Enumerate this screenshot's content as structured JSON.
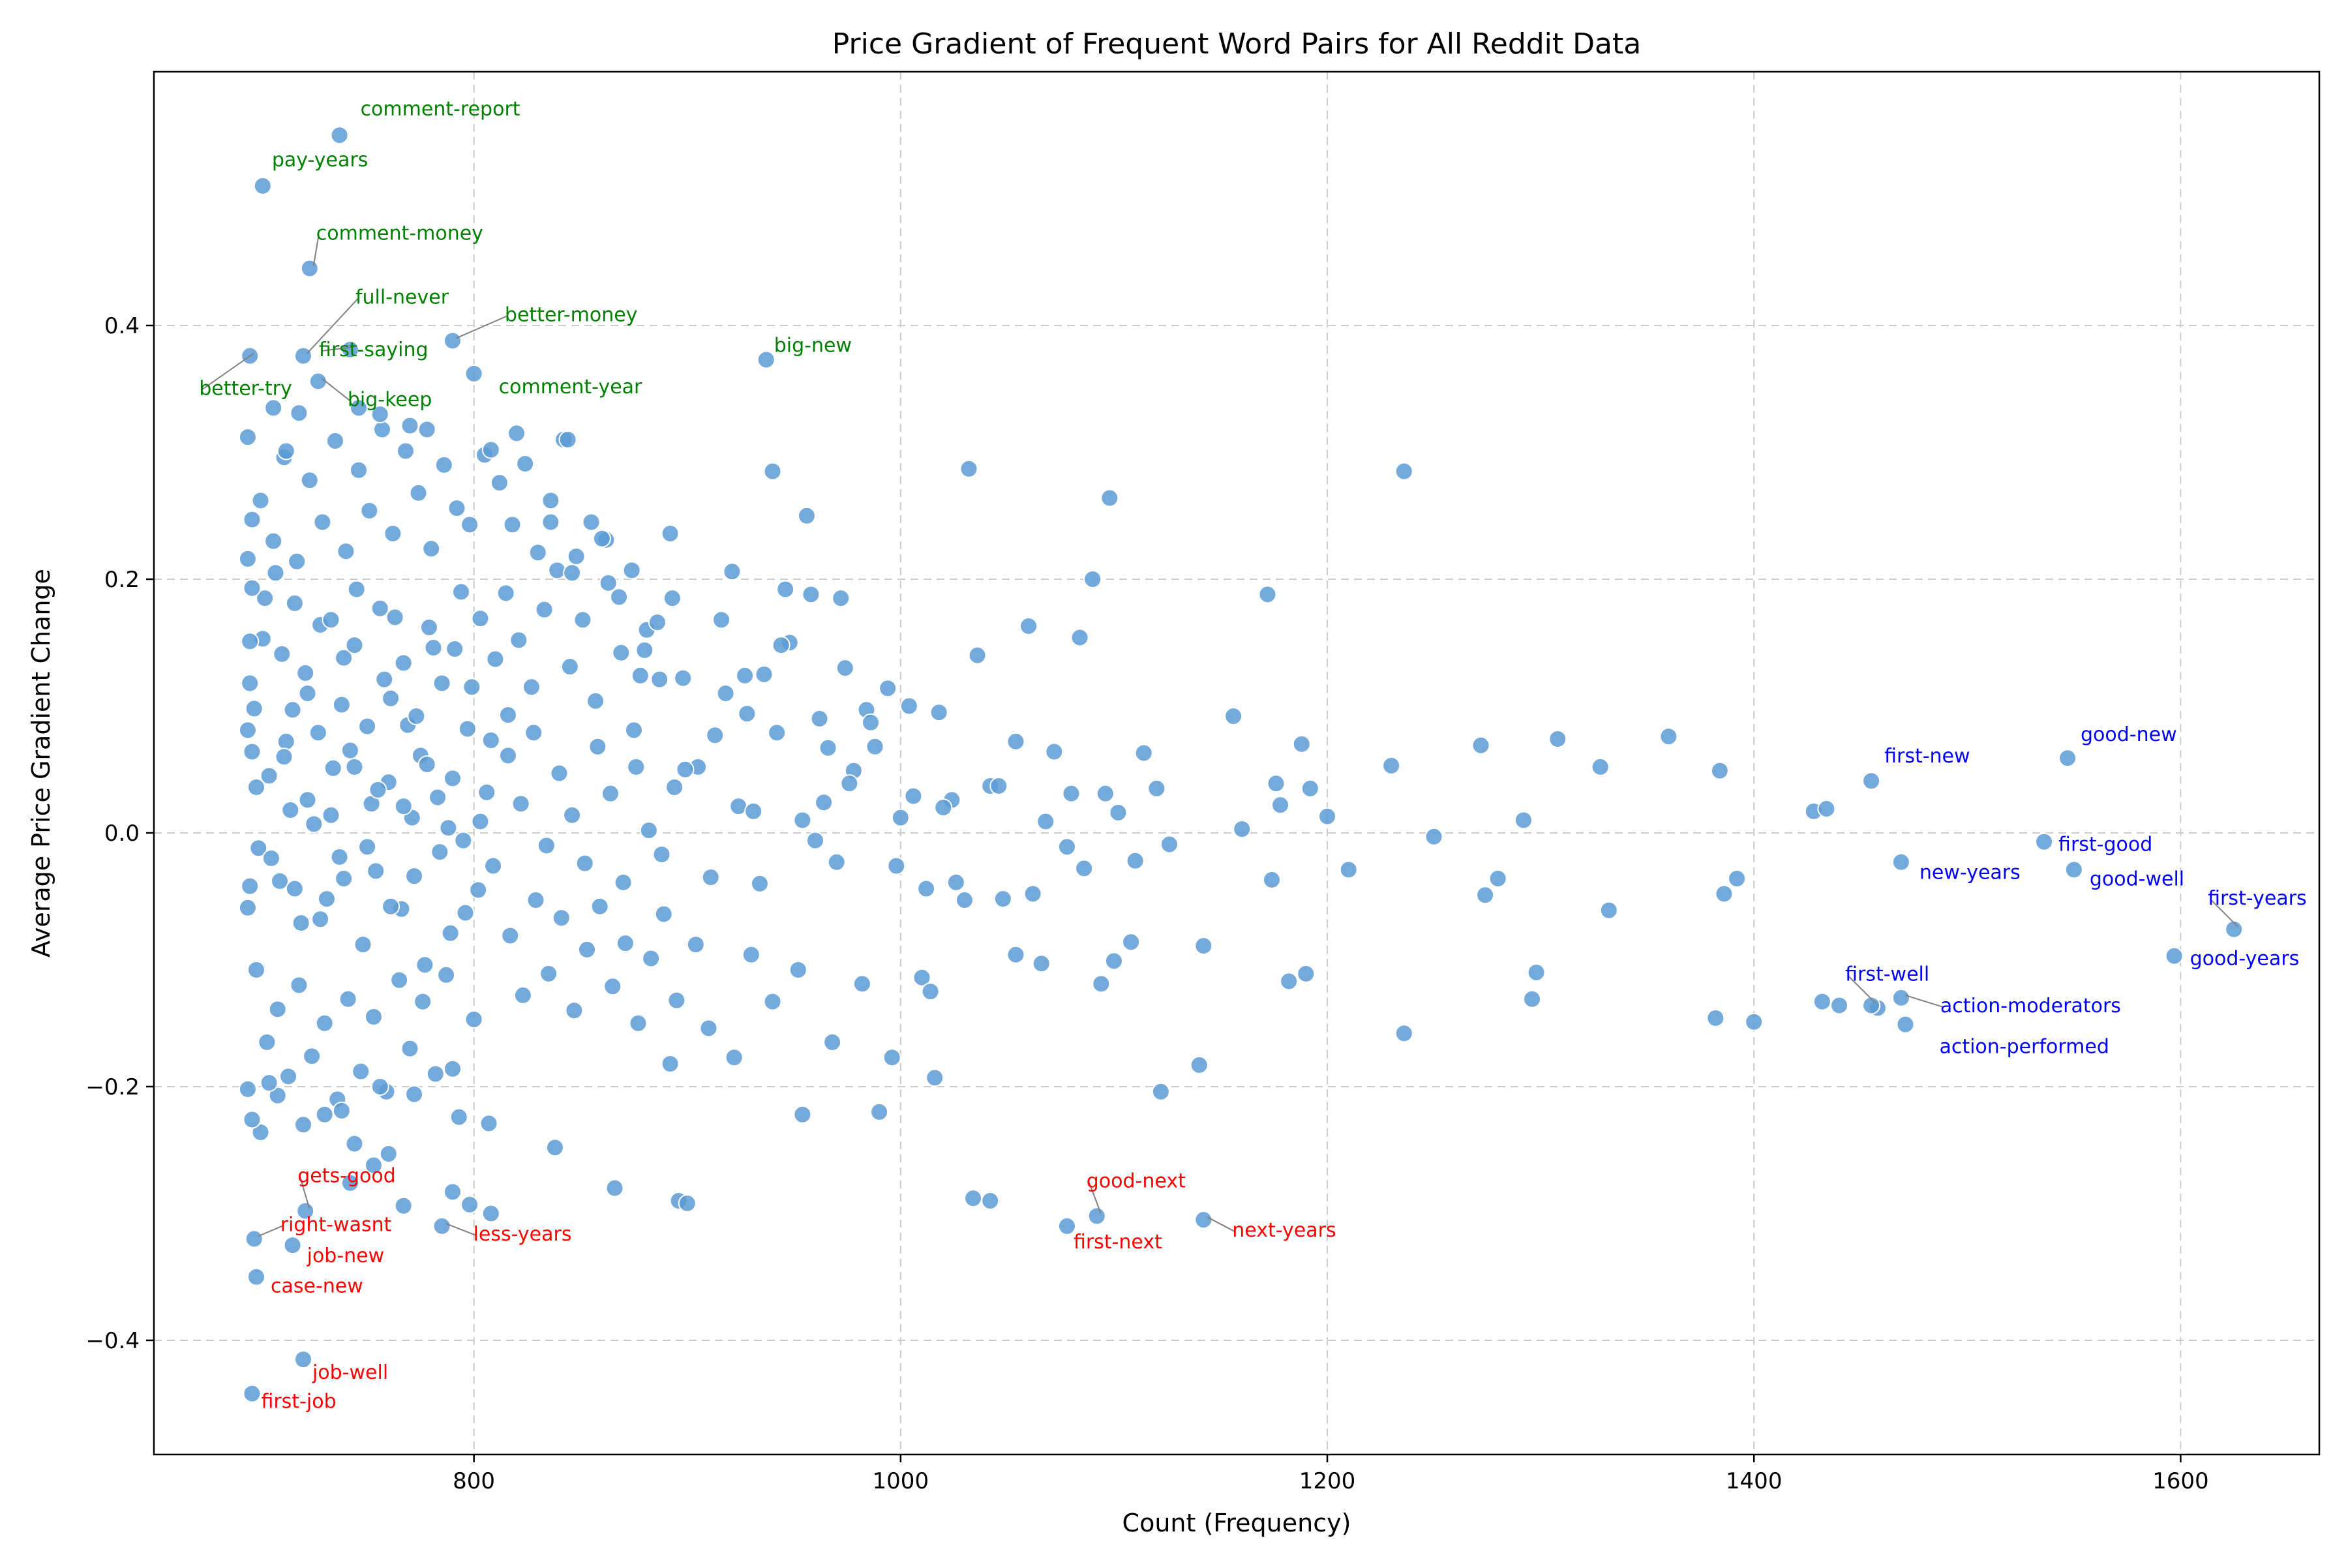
{
  "chart_data": {
    "type": "scatter",
    "title": "Price Gradient of Frequent Word Pairs for All Reddit Data",
    "xlabel": "Count (Frequency)",
    "ylabel": "Average Price Gradient Change",
    "xlim": [
      650,
      1665
    ],
    "ylim": [
      -0.49,
      0.6
    ],
    "xticks": [
      800,
      1000,
      1200,
      1400,
      1600
    ],
    "yticks": [
      -0.4,
      -0.2,
      0.0,
      0.2,
      0.4
    ],
    "xtick_labels": [
      "800",
      "1000",
      "1200",
      "1400",
      "1600"
    ],
    "ytick_labels": [
      "−0.4",
      "−0.2",
      "0.0",
      "0.2",
      "0.4"
    ],
    "grid": true,
    "point_color": "#5b9bd5",
    "annotation_colors": {
      "high": "#008000",
      "low": "#ff0000",
      "frequent": "#0000ff"
    },
    "annotated_points": [
      {
        "label": "comment-report",
        "x": 737,
        "y": 0.55,
        "group": "high"
      },
      {
        "label": "pay-years",
        "x": 701,
        "y": 0.51,
        "group": "high"
      },
      {
        "label": "comment-money",
        "x": 723,
        "y": 0.445,
        "group": "high"
      },
      {
        "label": "full-never",
        "x": 720,
        "y": 0.376,
        "group": "high"
      },
      {
        "label": "better-money",
        "x": 790,
        "y": 0.388,
        "group": "high"
      },
      {
        "label": "big-new",
        "x": 937,
        "y": 0.373,
        "group": "high"
      },
      {
        "label": "first-saying",
        "x": 742,
        "y": 0.381,
        "group": "high"
      },
      {
        "label": "comment-year",
        "x": 800,
        "y": 0.362,
        "group": "high"
      },
      {
        "label": "better-try",
        "x": 695,
        "y": 0.376,
        "group": "high"
      },
      {
        "label": "big-keep",
        "x": 727,
        "y": 0.356,
        "group": "high"
      },
      {
        "label": "first-new",
        "x": 1455,
        "y": 0.041,
        "group": "frequent"
      },
      {
        "label": "good-new",
        "x": 1547,
        "y": 0.059,
        "group": "frequent"
      },
      {
        "label": "first-good",
        "x": 1536,
        "y": -0.007,
        "group": "frequent"
      },
      {
        "label": "new-years",
        "x": 1469,
        "y": -0.023,
        "group": "frequent"
      },
      {
        "label": "good-well",
        "x": 1550,
        "y": -0.029,
        "group": "frequent"
      },
      {
        "label": "first-years",
        "x": 1625,
        "y": -0.076,
        "group": "frequent"
      },
      {
        "label": "good-years",
        "x": 1597,
        "y": -0.097,
        "group": "frequent"
      },
      {
        "label": "first-well",
        "x": 1455,
        "y": -0.136,
        "group": "frequent"
      },
      {
        "label": "action-moderators",
        "x": 1469,
        "y": -0.13,
        "group": "frequent"
      },
      {
        "label": "action-performed",
        "x": 1471,
        "y": -0.151,
        "group": "frequent"
      },
      {
        "label": "gets-good",
        "x": 721,
        "y": -0.298,
        "group": "low"
      },
      {
        "label": "right-wasnt",
        "x": 697,
        "y": -0.32,
        "group": "low"
      },
      {
        "label": "job-new",
        "x": 715,
        "y": -0.325,
        "group": "low"
      },
      {
        "label": "less-years",
        "x": 785,
        "y": -0.31,
        "group": "low"
      },
      {
        "label": "case-new",
        "x": 698,
        "y": -0.35,
        "group": "low"
      },
      {
        "label": "good-next",
        "x": 1092,
        "y": -0.302,
        "group": "low"
      },
      {
        "label": "first-next",
        "x": 1078,
        "y": -0.31,
        "group": "low"
      },
      {
        "label": "next-years",
        "x": 1142,
        "y": -0.305,
        "group": "low"
      },
      {
        "label": "job-well",
        "x": 720,
        "y": -0.415,
        "group": "low"
      },
      {
        "label": "first-job",
        "x": 696,
        "y": -0.442,
        "group": "low"
      }
    ],
    "points": [
      [
        701,
        0.153
      ],
      [
        697,
        0.098
      ],
      [
        707,
        0.205
      ],
      [
        712,
        0.072
      ],
      [
        716,
        0.181
      ],
      [
        722,
        0.11
      ],
      [
        728,
        0.164
      ],
      [
        734,
        0.051
      ],
      [
        739,
        0.138
      ],
      [
        745,
        0.192
      ],
      [
        752,
        0.023
      ],
      [
        758,
        0.121
      ],
      [
        763,
        0.17
      ],
      [
        769,
        0.085
      ],
      [
        775,
        0.061
      ],
      [
        781,
        0.146
      ],
      [
        788,
        0.004
      ],
      [
        794,
        0.19
      ],
      [
        799,
        0.115
      ],
      [
        806,
        0.032
      ],
      [
        699,
        -0.012
      ],
      [
        704,
        0.045
      ],
      [
        709,
        -0.038
      ],
      [
        714,
        0.018
      ],
      [
        719,
        -0.071
      ],
      [
        725,
        0.007
      ],
      [
        731,
        -0.052
      ],
      [
        737,
        -0.019
      ],
      [
        742,
        0.065
      ],
      [
        748,
        -0.088
      ],
      [
        754,
        -0.03
      ],
      [
        760,
        0.04
      ],
      [
        766,
        -0.06
      ],
      [
        771,
        0.012
      ],
      [
        777,
        -0.104
      ],
      [
        783,
        0.028
      ],
      [
        789,
        -0.079
      ],
      [
        795,
        -0.006
      ],
      [
        802,
        -0.045
      ],
      [
        808,
        0.073
      ],
      [
        700,
        0.262
      ],
      [
        706,
        0.23
      ],
      [
        711,
        0.296
      ],
      [
        717,
        0.214
      ],
      [
        723,
        0.278
      ],
      [
        729,
        0.245
      ],
      [
        735,
        0.309
      ],
      [
        740,
        0.222
      ],
      [
        746,
        0.286
      ],
      [
        751,
        0.254
      ],
      [
        757,
        0.318
      ],
      [
        762,
        0.236
      ],
      [
        768,
        0.301
      ],
      [
        774,
        0.268
      ],
      [
        780,
        0.224
      ],
      [
        786,
        0.29
      ],
      [
        792,
        0.256
      ],
      [
        798,
        0.243
      ],
      [
        805,
        0.298
      ],
      [
        812,
        0.276
      ],
      [
        698,
        -0.108
      ],
      [
        703,
        -0.165
      ],
      [
        708,
        -0.139
      ],
      [
        713,
        -0.192
      ],
      [
        718,
        -0.12
      ],
      [
        724,
        -0.176
      ],
      [
        730,
        -0.15
      ],
      [
        736,
        -0.21
      ],
      [
        741,
        -0.131
      ],
      [
        747,
        -0.188
      ],
      [
        753,
        -0.145
      ],
      [
        759,
        -0.204
      ],
      [
        765,
        -0.116
      ],
      [
        770,
        -0.17
      ],
      [
        776,
        -0.133
      ],
      [
        782,
        -0.19
      ],
      [
        787,
        -0.112
      ],
      [
        793,
        -0.224
      ],
      [
        800,
        -0.147
      ],
      [
        807,
        -0.229
      ],
      [
        702,
        0.185
      ],
      [
        710,
        0.141
      ],
      [
        715,
        0.097
      ],
      [
        721,
        0.126
      ],
      [
        727,
        0.079
      ],
      [
        733,
        0.168
      ],
      [
        738,
        0.101
      ],
      [
        744,
        0.148
      ],
      [
        750,
        0.084
      ],
      [
        756,
        0.177
      ],
      [
        761,
        0.106
      ],
      [
        767,
        0.134
      ],
      [
        773,
        0.092
      ],
      [
        779,
        0.162
      ],
      [
        785,
        0.118
      ],
      [
        791,
        0.145
      ],
      [
        797,
        0.082
      ],
      [
        803,
        0.169
      ],
      [
        810,
        0.137
      ],
      [
        816,
        0.093
      ],
      [
        698,
        0.036
      ],
      [
        705,
        -0.02
      ],
      [
        711,
        0.06
      ],
      [
        716,
        -0.044
      ],
      [
        722,
        0.026
      ],
      [
        728,
        -0.068
      ],
      [
        733,
        0.014
      ],
      [
        739,
        -0.036
      ],
      [
        744,
        0.052
      ],
      [
        750,
        -0.011
      ],
      [
        755,
        0.034
      ],
      [
        761,
        -0.058
      ],
      [
        767,
        0.021
      ],
      [
        772,
        -0.034
      ],
      [
        778,
        0.054
      ],
      [
        784,
        -0.015
      ],
      [
        790,
        0.043
      ],
      [
        796,
        -0.063
      ],
      [
        803,
        0.009
      ],
      [
        809,
        -0.026
      ],
      [
        815,
        0.189
      ],
      [
        821,
        0.152
      ],
      [
        827,
        0.115
      ],
      [
        833,
        0.176
      ],
      [
        839,
        0.207
      ],
      [
        845,
        0.131
      ],
      [
        851,
        0.168
      ],
      [
        857,
        0.104
      ],
      [
        863,
        0.197
      ],
      [
        869,
        0.142
      ],
      [
        875,
        0.081
      ],
      [
        881,
        0.16
      ],
      [
        887,
        0.121
      ],
      [
        893,
        0.185
      ],
      [
        816,
        0.061
      ],
      [
        822,
        0.023
      ],
      [
        828,
        0.079
      ],
      [
        834,
        -0.01
      ],
      [
        840,
        0.047
      ],
      [
        846,
        0.014
      ],
      [
        852,
        -0.024
      ],
      [
        858,
        0.068
      ],
      [
        864,
        0.031
      ],
      [
        870,
        -0.039
      ],
      [
        876,
        0.052
      ],
      [
        882,
        0.002
      ],
      [
        888,
        -0.017
      ],
      [
        894,
        0.036
      ],
      [
        817,
        -0.081
      ],
      [
        823,
        -0.128
      ],
      [
        829,
        -0.053
      ],
      [
        835,
        -0.111
      ],
      [
        841,
        -0.067
      ],
      [
        847,
        -0.14
      ],
      [
        853,
        -0.092
      ],
      [
        859,
        -0.058
      ],
      [
        865,
        -0.121
      ],
      [
        871,
        -0.087
      ],
      [
        877,
        -0.15
      ],
      [
        883,
        -0.099
      ],
      [
        889,
        -0.064
      ],
      [
        895,
        -0.132
      ],
      [
        818,
        0.243
      ],
      [
        824,
        0.291
      ],
      [
        830,
        0.221
      ],
      [
        836,
        0.262
      ],
      [
        842,
        0.31
      ],
      [
        848,
        0.218
      ],
      [
        855,
        0.245
      ],
      [
        862,
        0.231
      ],
      [
        868,
        0.186
      ],
      [
        874,
        0.207
      ],
      [
        880,
        0.144
      ],
      [
        886,
        0.166
      ],
      [
        892,
        0.236
      ],
      [
        898,
        0.122
      ],
      [
        905,
        0.052
      ],
      [
        911,
        -0.035
      ],
      [
        918,
        0.11
      ],
      [
        924,
        0.021
      ],
      [
        930,
        -0.096
      ],
      [
        936,
        0.125
      ],
      [
        942,
        0.079
      ],
      [
        948,
        0.15
      ],
      [
        954,
        0.01
      ],
      [
        960,
        -0.006
      ],
      [
        966,
        0.067
      ],
      [
        972,
        0.185
      ],
      [
        978,
        0.049
      ],
      [
        984,
        0.097
      ],
      [
        904,
        -0.088
      ],
      [
        910,
        -0.154
      ],
      [
        916,
        0.168
      ],
      [
        922,
        -0.177
      ],
      [
        928,
        0.094
      ],
      [
        934,
        -0.04
      ],
      [
        940,
        -0.133
      ],
      [
        946,
        0.192
      ],
      [
        952,
        -0.108
      ],
      [
        958,
        0.188
      ],
      [
        964,
        0.024
      ],
      [
        970,
        -0.023
      ],
      [
        976,
        0.039
      ],
      [
        982,
        -0.119
      ],
      [
        988,
        0.068
      ],
      [
        994,
        0.114
      ],
      [
        1000,
        0.012
      ],
      [
        1006,
        0.029
      ],
      [
        1012,
        -0.044
      ],
      [
        1018,
        0.095
      ],
      [
        1024,
        0.026
      ],
      [
        1030,
        -0.053
      ],
      [
        1036,
        0.14
      ],
      [
        1042,
        0.037
      ],
      [
        1048,
        -0.052
      ],
      [
        1054,
        0.072
      ],
      [
        1060,
        0.163
      ],
      [
        1066,
        -0.103
      ],
      [
        1072,
        0.064
      ],
      [
        1078,
        -0.011
      ],
      [
        1084,
        0.154
      ],
      [
        1090,
        0.2
      ],
      [
        1096,
        0.031
      ],
      [
        1102,
        0.016
      ],
      [
        1108,
        -0.086
      ],
      [
        1114,
        0.063
      ],
      [
        1120,
        0.035
      ],
      [
        1126,
        -0.009
      ],
      [
        1054,
        -0.096
      ],
      [
        1062,
        -0.048
      ],
      [
        1068,
        0.009
      ],
      [
        1080,
        0.031
      ],
      [
        1086,
        -0.028
      ],
      [
        1094,
        -0.119
      ],
      [
        1100,
        -0.101
      ],
      [
        1110,
        -0.022
      ],
      [
        1122,
        -0.204
      ],
      [
        1140,
        -0.183
      ],
      [
        1142,
        -0.089
      ],
      [
        1156,
        0.092
      ],
      [
        1160,
        0.003
      ],
      [
        1172,
        0.188
      ],
      [
        1174,
        -0.037
      ],
      [
        1176,
        0.039
      ],
      [
        1178,
        0.022
      ],
      [
        1182,
        -0.117
      ],
      [
        1188,
        0.07
      ],
      [
        1190,
        -0.111
      ],
      [
        1192,
        0.035
      ],
      [
        1200,
        0.013
      ],
      [
        1210,
        -0.029
      ],
      [
        1230,
        0.053
      ],
      [
        1236,
        0.285
      ],
      [
        1236,
        -0.158
      ],
      [
        1250,
        -0.003
      ],
      [
        1272,
        0.069
      ],
      [
        1274,
        -0.049
      ],
      [
        1280,
        -0.036
      ],
      [
        1292,
        0.01
      ],
      [
        1296,
        -0.131
      ],
      [
        1298,
        -0.11
      ],
      [
        1308,
        0.074
      ],
      [
        1328,
        0.052
      ],
      [
        1332,
        -0.061
      ],
      [
        1360,
        0.076
      ],
      [
        1382,
        -0.146
      ],
      [
        1384,
        0.049
      ],
      [
        1386,
        -0.048
      ],
      [
        1392,
        -0.036
      ],
      [
        1400,
        -0.149
      ],
      [
        1428,
        0.017
      ],
      [
        1432,
        -0.133
      ],
      [
        1434,
        0.019
      ],
      [
        1440,
        -0.136
      ],
      [
        1458,
        -0.138
      ],
      [
        1032,
        0.287
      ],
      [
        1098,
        0.264
      ],
      [
        940,
        0.285
      ],
      [
        956,
        0.25
      ],
      [
        1034,
        -0.288
      ],
      [
        1042,
        -0.29
      ],
      [
        990,
        -0.22
      ],
      [
        954,
        -0.222
      ],
      [
        968,
        -0.165
      ],
      [
        996,
        -0.177
      ],
      [
        1016,
        -0.193
      ],
      [
        892,
        -0.182
      ],
      [
        866,
        -0.28
      ],
      [
        896,
        -0.29
      ],
      [
        900,
        -0.292
      ],
      [
        838,
        -0.248
      ],
      [
        808,
        -0.3
      ],
      [
        798,
        -0.293
      ],
      [
        790,
        -0.283
      ],
      [
        760,
        -0.253
      ],
      [
        767,
        -0.294
      ],
      [
        753,
        -0.262
      ],
      [
        742,
        -0.276
      ],
      [
        720,
        -0.23
      ],
      [
        708,
        -0.207
      ],
      [
        700,
        -0.236
      ],
      [
        696,
        -0.226
      ],
      [
        694,
        -0.202
      ],
      [
        704,
        -0.197
      ],
      [
        730,
        -0.222
      ],
      [
        738,
        -0.219
      ],
      [
        744,
        -0.245
      ],
      [
        756,
        -0.2
      ],
      [
        772,
        -0.206
      ],
      [
        790,
        -0.186
      ],
      [
        836,
        0.245
      ],
      [
        860,
        0.232
      ],
      [
        846,
        0.205
      ],
      [
        878,
        0.124
      ],
      [
        899,
        0.05
      ],
      [
        913,
        0.077
      ],
      [
        921,
        0.206
      ],
      [
        927,
        0.124
      ],
      [
        931,
        0.017
      ],
      [
        944,
        0.148
      ],
      [
        962,
        0.09
      ],
      [
        974,
        0.13
      ],
      [
        986,
        0.087
      ],
      [
        998,
        -0.026
      ],
      [
        1004,
        0.1
      ],
      [
        1010,
        -0.114
      ],
      [
        1014,
        -0.125
      ],
      [
        1020,
        0.02
      ],
      [
        1026,
        -0.039
      ],
      [
        1046,
        0.037
      ],
      [
        694,
        0.081
      ],
      [
        695,
        0.118
      ],
      [
        696,
        0.193
      ],
      [
        694,
        -0.059
      ],
      [
        695,
        -0.042
      ],
      [
        696,
        0.064
      ],
      [
        694,
        0.216
      ],
      [
        695,
        0.151
      ],
      [
        696,
        0.247
      ],
      [
        694,
        0.312
      ],
      [
        712,
        0.301
      ],
      [
        718,
        0.331
      ],
      [
        746,
        0.335
      ],
      [
        756,
        0.33
      ],
      [
        770,
        0.321
      ],
      [
        778,
        0.318
      ],
      [
        808,
        0.302
      ],
      [
        820,
        0.315
      ],
      [
        844,
        0.31
      ],
      [
        706,
        0.335
      ]
    ]
  }
}
